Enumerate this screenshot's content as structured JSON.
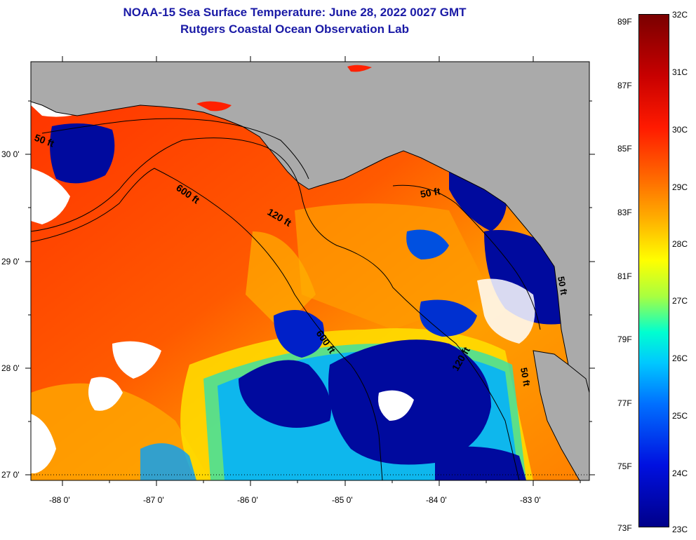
{
  "title": {
    "line1": "NOAA-15 Sea Surface Temperature:  June 28, 2022 0027 GMT",
    "line2": "Rutgers Coastal Ocean Observation Lab"
  },
  "map": {
    "lat_labels": [
      "30 0'",
      "29 0'",
      "28 0'",
      "27 0'"
    ],
    "lon_labels": [
      "-88 0'",
      "-87 0'",
      "-86 0'",
      "-85 0'",
      "-84 0'",
      "-83 0'"
    ],
    "contour_labels": [
      "50 ft",
      "600 ft",
      "120 ft",
      "50 ft",
      "600 ft",
      "120 ft",
      "50 ft",
      "50 ft"
    ]
  },
  "colorbar": {
    "fahrenheit": [
      "89F",
      "87F",
      "85F",
      "83F",
      "81F",
      "79F",
      "77F",
      "75F",
      "73F"
    ],
    "celsius": [
      "32C",
      "31C",
      "30C",
      "29C",
      "28C",
      "27C",
      "26C",
      "25C",
      "24C",
      "23C"
    ]
  },
  "colors": {
    "land": "#aaaaaa",
    "title": "#1a1aa6",
    "hot": "#ff2a00",
    "warm": "#ff7a00",
    "cold": "#000a9e"
  }
}
